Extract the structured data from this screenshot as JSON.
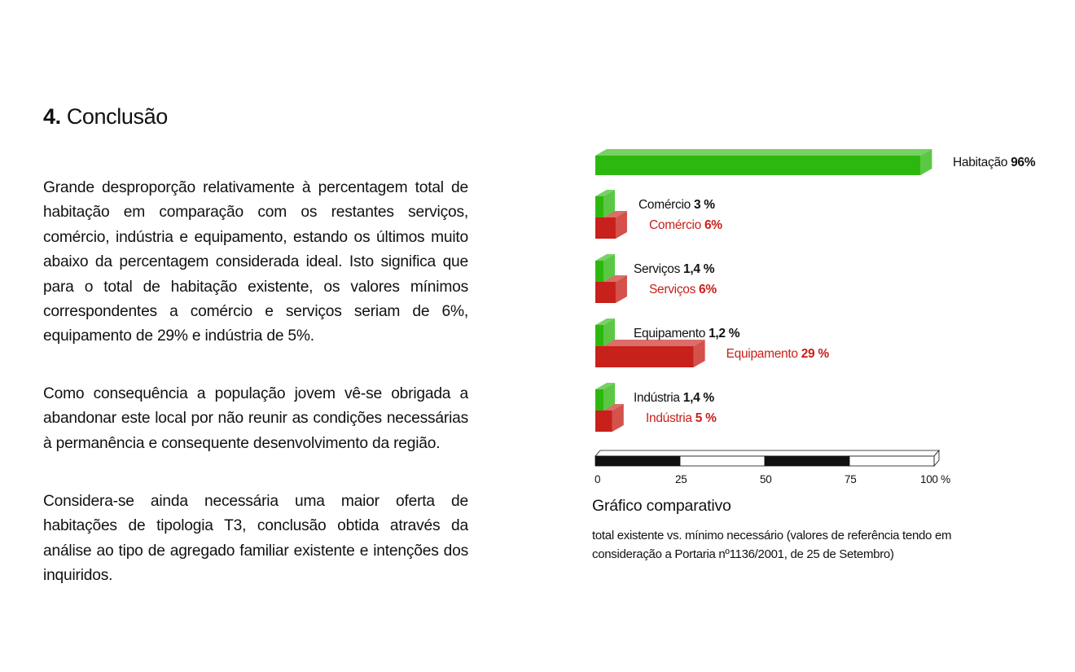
{
  "section": {
    "number": "4.",
    "title": "Conclusão"
  },
  "paragraphs": [
    "Grande desproporção relativamente à percentagem total de habitação em comparação com os restantes serviços, comércio, indústria e equipamento, estando os últimos muito abaixo da percentagem considerada ideal. Isto significa que para o total de habitação existente, os valores mínimos correspondentes a comércio e serviços seriam de 6%, equipamento de 29% e indústria de 5%.",
    "Como consequência a população jovem vê-se obrigada a abandonar este local por não reunir as condições necessárias à permanência e consequente desenvolvimento da região.",
    "Considera-se ainda necessária uma maior oferta de habitações de tipologia T3, conclusão obtida através da análise ao tipo de agregado familiar existente e intenções dos inquiridos."
  ],
  "chart_data": {
    "type": "bar",
    "orientation": "horizontal",
    "title": "Gráfico comparativo",
    "subtitle": "total existente vs. mínimo necessário (valores de referência tendo em consideração a Portaria nº1136/2001, de 25 de Setembro)",
    "xlim": [
      0,
      100
    ],
    "x_ticks": [
      "0",
      "25",
      "50",
      "75",
      "100 %"
    ],
    "colors": {
      "existente": "#2db80f",
      "necessario": "#c8201a"
    },
    "groups": [
      {
        "category": "Habitação",
        "existente": 96,
        "existente_label": "96%"
      },
      {
        "category": "Comércio",
        "existente": 3,
        "existente_label": "3 %",
        "necessario": 6,
        "necessario_label": "6%"
      },
      {
        "category": "Serviços",
        "existente": 1.4,
        "existente_label": "1,4 %",
        "necessario": 6,
        "necessario_label": "6%"
      },
      {
        "category": "Equipamento",
        "existente": 1.2,
        "existente_label": "1,2 %",
        "necessario": 29,
        "necessario_label": "29 %"
      },
      {
        "category": "Indústria",
        "existente": 1.4,
        "existente_label": "1,4 %",
        "necessario": 5,
        "necessario_label": "5 %"
      }
    ]
  }
}
